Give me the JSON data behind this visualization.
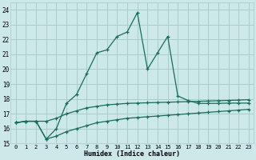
{
  "xlabel": "Humidex (Indice chaleur)",
  "bg_color": "#cce8e8",
  "grid_color": "#aacccc",
  "line_color": "#1a6b5a",
  "xlim": [
    -0.5,
    23.5
  ],
  "ylim": [
    15,
    24.5
  ],
  "yticks": [
    15,
    16,
    17,
    18,
    19,
    20,
    21,
    22,
    23,
    24
  ],
  "xticks": [
    0,
    1,
    2,
    3,
    4,
    5,
    6,
    7,
    8,
    9,
    10,
    11,
    12,
    13,
    14,
    15,
    16,
    17,
    18,
    19,
    20,
    21,
    22,
    23
  ],
  "s1_x": [
    0,
    1,
    2,
    3,
    4,
    5,
    6,
    7,
    8,
    9,
    10,
    11,
    12,
    13,
    14,
    15,
    16,
    17,
    18,
    19,
    20,
    21,
    22,
    23
  ],
  "s1_y": [
    16.4,
    16.5,
    16.5,
    15.3,
    15.5,
    15.8,
    16.0,
    16.2,
    16.4,
    16.5,
    16.6,
    16.7,
    16.75,
    16.8,
    16.85,
    16.9,
    16.95,
    17.0,
    17.05,
    17.1,
    17.15,
    17.2,
    17.25,
    17.3
  ],
  "s2_x": [
    0,
    1,
    2,
    3,
    4,
    5,
    6,
    7,
    8,
    9,
    10,
    11,
    12,
    13,
    14,
    15,
    16,
    17,
    18,
    19,
    20,
    21,
    22,
    23
  ],
  "s2_y": [
    16.4,
    16.5,
    16.5,
    16.5,
    16.7,
    17.0,
    17.2,
    17.4,
    17.5,
    17.6,
    17.65,
    17.7,
    17.72,
    17.74,
    17.76,
    17.78,
    17.8,
    17.82,
    17.84,
    17.86,
    17.88,
    17.9,
    17.92,
    17.95
  ],
  "s3_x": [
    0,
    1,
    2,
    3,
    4,
    5,
    6,
    7,
    8,
    9,
    10,
    11,
    12,
    13,
    14,
    15,
    16,
    17,
    18,
    19,
    20,
    21,
    22,
    23
  ],
  "s3_y": [
    16.4,
    16.5,
    16.5,
    15.3,
    16.0,
    17.7,
    18.3,
    19.7,
    21.1,
    21.3,
    22.2,
    22.5,
    23.8,
    20.0,
    21.1,
    22.2,
    18.2,
    17.9,
    17.7,
    17.7,
    17.7,
    17.72,
    17.72,
    17.72
  ]
}
